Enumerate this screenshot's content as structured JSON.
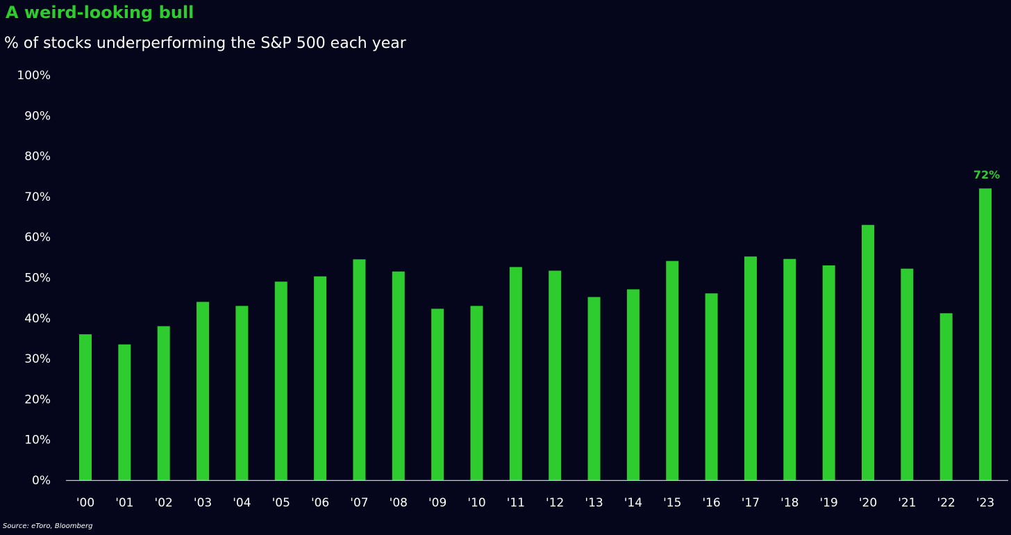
{
  "chart_data": {
    "type": "bar",
    "title": "A weird-looking bull",
    "subtitle": "% of stocks underperforming the S&P 500 each year",
    "source": "Source: eToro, Bloomberg",
    "xlabel": "",
    "ylabel": "",
    "ylim": [
      0,
      100
    ],
    "yticks": [
      0,
      10,
      20,
      30,
      40,
      50,
      60,
      70,
      80,
      90,
      100
    ],
    "ytick_labels": [
      "0%",
      "10%",
      "20%",
      "30%",
      "40%",
      "50%",
      "60%",
      "70%",
      "80%",
      "90%",
      "100%"
    ],
    "categories": [
      "'00",
      "'01",
      "'02",
      "'03",
      "'04",
      "'05",
      "'06",
      "'07",
      "'08",
      "'09",
      "'10",
      "'11",
      "'12",
      "'13",
      "'14",
      "'15",
      "'16",
      "'17",
      "'18",
      "'19",
      "'20",
      "'21",
      "'22",
      "'23"
    ],
    "values": [
      36,
      33.5,
      38,
      44,
      43,
      49,
      50.3,
      54.5,
      51.5,
      42.3,
      43,
      52.6,
      51.7,
      45.2,
      47.1,
      54.1,
      46.1,
      55.2,
      54.6,
      53,
      63,
      52.2,
      41.2,
      72
    ],
    "annotations": [
      {
        "index": 23,
        "text": "72%"
      }
    ],
    "grid": false,
    "colors": {
      "bar": "#2ecc2e",
      "title": "#2ecc2e",
      "annotation": "#2ecc2e",
      "text": "#ffffff",
      "axis": "#cccccc",
      "background": "#05051c"
    }
  }
}
